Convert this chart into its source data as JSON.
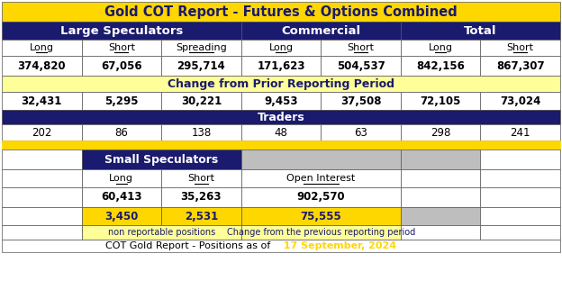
{
  "title": "Gold COT Report - Futures & Options Combined",
  "title_bg": "#FFD700",
  "title_color": "#1a1a6e",
  "header_bg": "#1a1a6e",
  "header_color": "#FFFFFF",
  "yellow_bg": "#FFFF99",
  "yellow_dark": "#FFD700",
  "white_bg": "#FFFFFF",
  "gray_bg": "#BEBEBE",
  "section_headers": {
    "large_spec": "Large Speculators",
    "commercial": "Commercial",
    "total": "Total"
  },
  "col_headers": [
    "Long",
    "Short",
    "Spreading",
    "Long",
    "Short",
    "Long",
    "Short"
  ],
  "main_values": [
    "374,820",
    "67,056",
    "295,714",
    "171,623",
    "504,537",
    "842,156",
    "867,307"
  ],
  "change_header": "Change from Prior Reporting Period",
  "change_values": [
    "32,431",
    "5,295",
    "30,221",
    "9,453",
    "37,508",
    "72,105",
    "73,024"
  ],
  "traders_header": "Traders",
  "traders_values": [
    "202",
    "86",
    "138",
    "48",
    "63",
    "298",
    "241"
  ],
  "small_spec_header": "Small Speculators",
  "small_spec_col_headers": [
    "Long",
    "Short",
    "Open Interest"
  ],
  "small_spec_values": [
    "60,413",
    "35,263",
    "902,570"
  ],
  "small_spec_change": [
    "3,450",
    "2,531",
    "75,555"
  ],
  "footer_label_left": "non reportable positions",
  "footer_label_right": "Change from the previous reporting period",
  "footer": "COT Gold Report - Positions as of",
  "footer_date": "17 September, 2024",
  "footer_date_color": "#FFD700"
}
